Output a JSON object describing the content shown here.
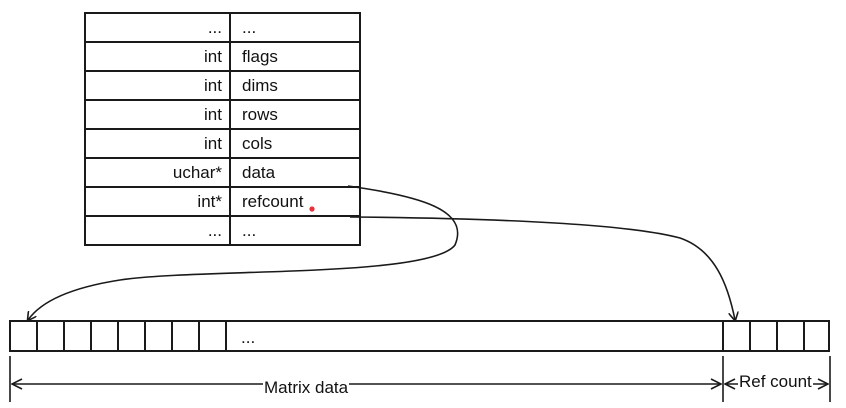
{
  "struct": {
    "rows": [
      {
        "type": "...",
        "field": "..."
      },
      {
        "type": "int",
        "field": "flags"
      },
      {
        "type": "int",
        "field": "dims"
      },
      {
        "type": "int",
        "field": "rows"
      },
      {
        "type": "int",
        "field": "cols"
      },
      {
        "type": "uchar*",
        "field": "data"
      },
      {
        "type": "int*",
        "field": "refcount"
      },
      {
        "type": "...",
        "field": "..."
      }
    ]
  },
  "buffer": {
    "ellipsis": "...",
    "matrix_data_label": "Matrix data",
    "ref_count_label": "Ref count"
  },
  "colors": {
    "line": "#1a1a1a",
    "marker": "#e8303a"
  }
}
